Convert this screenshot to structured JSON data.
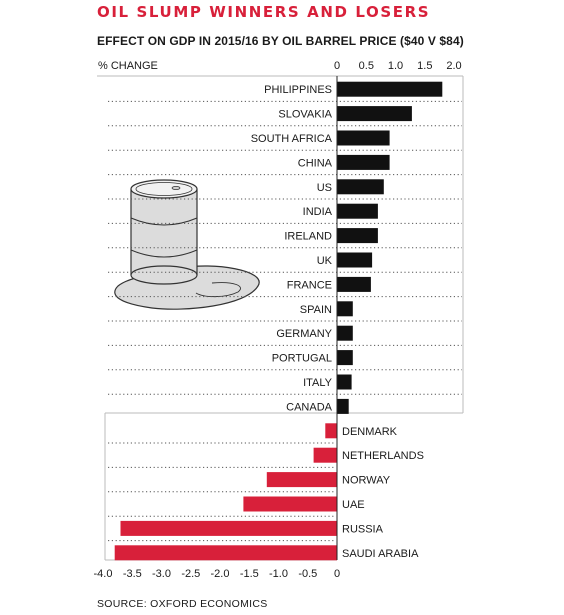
{
  "title": "OIL SLUMP WINNERS AND LOSERS",
  "subtitle": "EFFECT ON GDP IN 2015/16 BY OIL BARREL PRICE ($40 V $84)",
  "source": "SOURCE: OXFORD ECONOMICS",
  "colors": {
    "positive": "#111111",
    "negative": "#d8203a",
    "title": "#d8203a",
    "gridline": "#555555",
    "frame": "#bbbbbb",
    "barrel": "#dcdcdc",
    "barrel_outline": "#333333"
  },
  "icons": [
    "oil-barrel-icon",
    "oil-spill-icon"
  ],
  "chart_data": {
    "type": "bar",
    "orientation": "horizontal",
    "title": "OIL SLUMP WINNERS AND LOSERS",
    "subtitle": "EFFECT ON GDP IN 2015/16 BY OIL BARREL PRICE ($40 V $84)",
    "xlabel": "% CHANGE",
    "grid": "dotted horizontal separators",
    "top_axis": {
      "range": [
        0,
        2.0
      ],
      "ticks": [
        "0",
        "0.5",
        "1.0",
        "1.5",
        "2.0"
      ],
      "tick_values": [
        0,
        0.5,
        1.0,
        1.5,
        2.0
      ]
    },
    "bottom_axis": {
      "range": [
        -4.0,
        0
      ],
      "ticks": [
        "-4.0",
        "-3.5",
        "-3.0",
        "-2.5",
        "-2.0",
        "-1.5",
        "-1.0",
        "-0.5",
        "0"
      ],
      "tick_values": [
        -4.0,
        -3.5,
        -3.0,
        -2.5,
        -2.0,
        -1.5,
        -1.0,
        -0.5,
        0
      ]
    },
    "categories": [
      "PHILIPPINES",
      "SLOVAKIA",
      "SOUTH AFRICA",
      "CHINA",
      "US",
      "INDIA",
      "IRELAND",
      "UK",
      "FRANCE",
      "SPAIN",
      "GERMANY",
      "PORTUGAL",
      "ITALY",
      "CANADA",
      "DENMARK",
      "NETHERLANDS",
      "NORWAY",
      "UAE",
      "RUSSIA",
      "SAUDI ARABIA"
    ],
    "values": [
      1.8,
      1.28,
      0.9,
      0.9,
      0.8,
      0.7,
      0.7,
      0.6,
      0.58,
      0.27,
      0.27,
      0.27,
      0.25,
      0.2,
      -0.2,
      -0.4,
      -1.2,
      -1.6,
      -3.7,
      -3.8
    ]
  }
}
